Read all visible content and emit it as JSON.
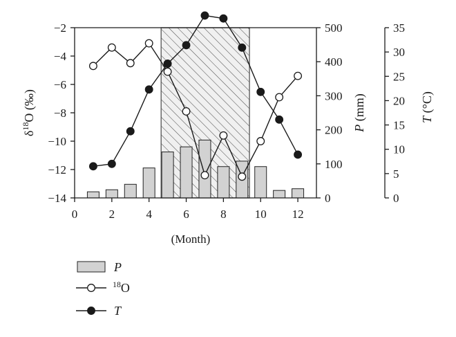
{
  "chart_data": {
    "type": "bar+line",
    "x": [
      1,
      2,
      3,
      4,
      5,
      6,
      7,
      8,
      9,
      10,
      11,
      12
    ],
    "xlim": [
      0,
      13
    ],
    "xticks": [
      "0",
      "2",
      "4",
      "6",
      "8",
      "10",
      "12"
    ],
    "xtick_values": [
      0,
      2,
      4,
      6,
      8,
      10,
      12
    ],
    "xlabel": "(Month)",
    "shaded_band": {
      "from_month": 4.65,
      "to_month": 9.4,
      "pattern": "diagonal-hatch"
    },
    "axes": {
      "left": {
        "label_prefix": "δ",
        "label_sup": "18",
        "label_suffix": "O (‰)",
        "ylim": [
          -14,
          -2
        ],
        "ticks": [
          "−2",
          "−4",
          "−6",
          "−8",
          "−10",
          "−12",
          "−14"
        ],
        "tick_values": [
          -2,
          -4,
          -6,
          -8,
          -10,
          -12,
          -14
        ]
      },
      "right1": {
        "label_var": "P",
        "label_unit": " (mm)",
        "ylim": [
          0,
          500
        ],
        "ticks": [
          "500",
          "400",
          "300",
          "200",
          "100",
          "0"
        ],
        "tick_values": [
          500,
          400,
          300,
          200,
          100,
          0
        ]
      },
      "right2": {
        "label_var": "T",
        "label_unit": " (°C)",
        "ylim": [
          0,
          35
        ],
        "ticks": [
          "35",
          "30",
          "25",
          "20",
          "15",
          "10",
          "5",
          "0"
        ],
        "tick_values": [
          35,
          30,
          25,
          20,
          15,
          10,
          5,
          0
        ]
      }
    },
    "series": [
      {
        "name": "P",
        "kind": "bar",
        "axis": "right1",
        "values": [
          18,
          24,
          40,
          88,
          135,
          150,
          170,
          92,
          108,
          92,
          22,
          27
        ]
      },
      {
        "name": "18O",
        "kind": "line-open-circle",
        "axis": "left",
        "values": [
          -4.7,
          -3.4,
          -4.5,
          -3.1,
          -5.1,
          -7.9,
          -12.4,
          -9.6,
          -12.5,
          -10.0,
          -6.9,
          -5.4
        ]
      },
      {
        "name": "T",
        "kind": "line-filled-circle",
        "axis": "right2",
        "values": [
          6.5,
          7.0,
          13.7,
          22.3,
          27.6,
          31.4,
          37.5,
          36.9,
          30.9,
          21.8,
          16.1,
          8.9
        ]
      }
    ],
    "legend": {
      "placement": "bottom-left",
      "items": [
        {
          "marker": "bar",
          "label": "P"
        },
        {
          "marker": "open-circle-line",
          "label_sup": "18",
          "label": "O"
        },
        {
          "marker": "filled-circle-line",
          "label": "T"
        }
      ]
    },
    "colors": {
      "bar_fill": "#d2d2d2",
      "bar_stroke": "#222222",
      "line": "#1a1a1a",
      "hatch": "#555555",
      "band_fill": "#f0f0f0"
    }
  }
}
